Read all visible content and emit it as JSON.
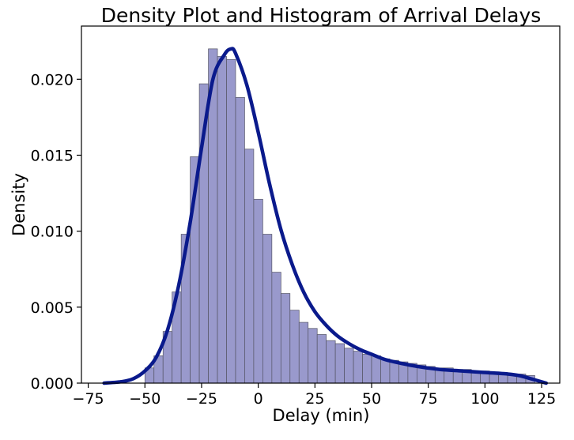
{
  "chart_data": {
    "type": "bar",
    "title": "Density Plot and Histogram of Arrival Delays",
    "xlabel": "Delay (min)",
    "ylabel": "Density",
    "xlim": [
      -78,
      133
    ],
    "ylim": [
      0,
      0.0235
    ],
    "x_ticks": [
      -75,
      -50,
      -25,
      0,
      25,
      50,
      75,
      100,
      125
    ],
    "y_ticks": [
      0.0,
      0.005,
      0.01,
      0.015,
      0.02
    ],
    "y_tick_labels": [
      "0.000",
      "0.005",
      "0.010",
      "0.015",
      "0.020"
    ],
    "grid": false,
    "histogram": {
      "bin_start": -50,
      "bin_width": 4,
      "values": [
        0.001,
        0.0018,
        0.0034,
        0.006,
        0.0098,
        0.0149,
        0.0197,
        0.022,
        0.0215,
        0.0213,
        0.0188,
        0.0154,
        0.0121,
        0.0098,
        0.0073,
        0.0059,
        0.0048,
        0.004,
        0.0036,
        0.0032,
        0.0028,
        0.0026,
        0.0023,
        0.0021,
        0.0019,
        0.0018,
        0.0016,
        0.0015,
        0.0014,
        0.0013,
        0.0012,
        0.0011,
        0.001,
        0.001,
        0.0009,
        0.0009,
        0.0008,
        0.0008,
        0.0007,
        0.0007,
        0.0006,
        0.0006,
        0.0005
      ],
      "fill_color": "#9999cc",
      "edge_color": "#555566"
    },
    "density": {
      "x": [
        -68,
        -60,
        -55,
        -50,
        -45,
        -40,
        -35,
        -30,
        -25,
        -20,
        -15,
        -12,
        -10,
        -5,
        0,
        5,
        10,
        15,
        20,
        25,
        30,
        35,
        40,
        45,
        50,
        55,
        60,
        70,
        80,
        90,
        100,
        110,
        115,
        120,
        127
      ],
      "y": [
        0.0,
        0.0001,
        0.0003,
        0.0008,
        0.0017,
        0.0035,
        0.0065,
        0.0106,
        0.0155,
        0.02,
        0.0216,
        0.022,
        0.0217,
        0.0196,
        0.0165,
        0.0131,
        0.0101,
        0.0078,
        0.006,
        0.0047,
        0.0038,
        0.0031,
        0.0026,
        0.0022,
        0.0019,
        0.0016,
        0.0014,
        0.0011,
        0.0009,
        0.0008,
        0.0007,
        0.0006,
        0.0005,
        0.0003,
        0.0
      ],
      "color": "#0a1a8c"
    }
  }
}
